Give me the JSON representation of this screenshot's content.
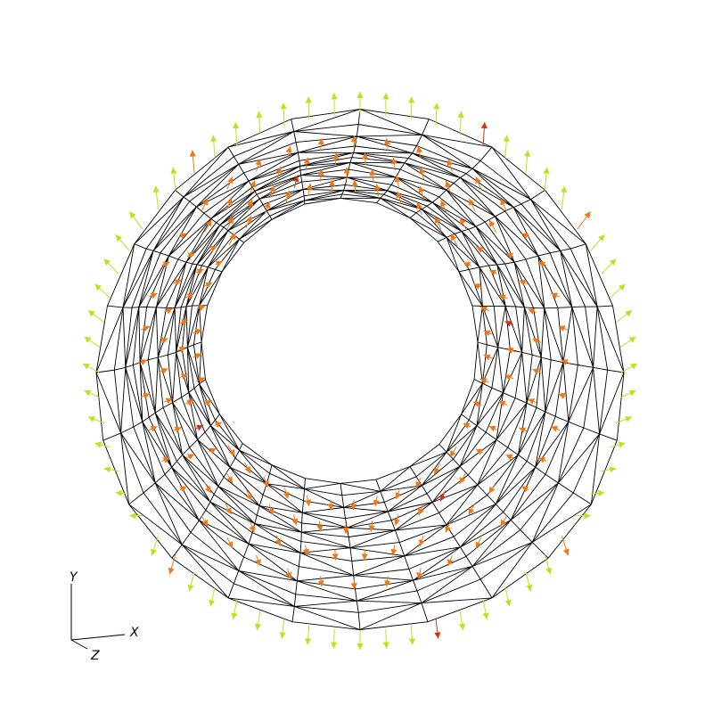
{
  "viewer": {
    "background": "#ffffff",
    "mesh": {
      "name": "torus-ring-wireframe",
      "line_color": "#000000",
      "rings": 13,
      "segments": 24
    },
    "vectors": {
      "colors": {
        "low": "#b4e61e",
        "mid": "#f07814",
        "high": "#d2320f"
      }
    },
    "axes": {
      "labels": {
        "x": "X",
        "y": "Y",
        "z": "Z"
      },
      "color": "#000000"
    }
  }
}
